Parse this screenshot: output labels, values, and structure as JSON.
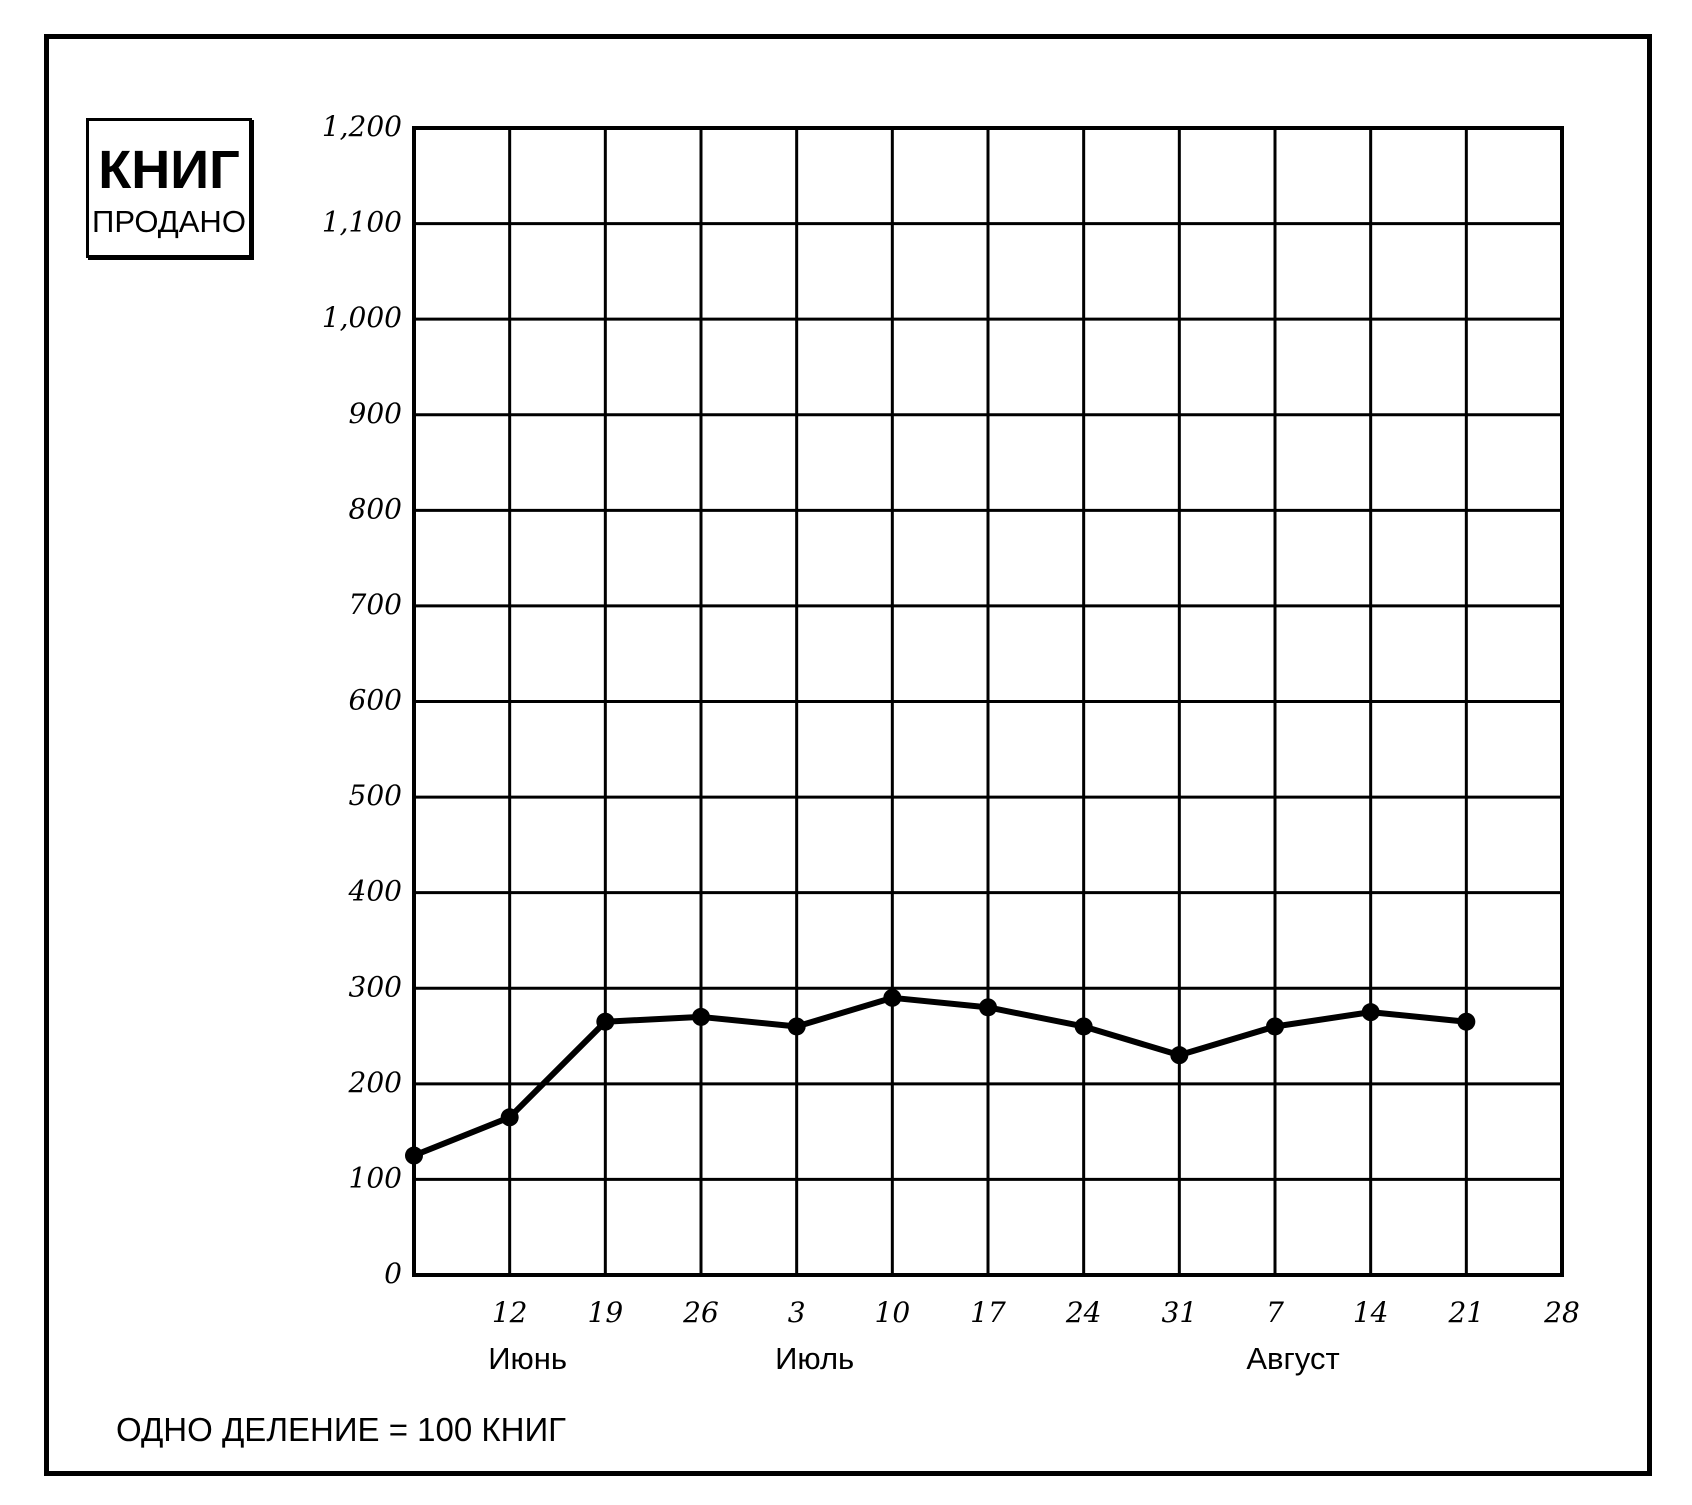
{
  "chart_data": {
    "type": "line",
    "ylabel": "КНИГ",
    "ylabel_sub": "ПРОДАНО",
    "note": "ОДНО ДЕЛЕНИЕ = 100 КНИГ",
    "ylim": [
      0,
      1200
    ],
    "y_ticks": [
      "0",
      "100",
      "200",
      "300",
      "400",
      "500",
      "600",
      "700",
      "800",
      "900",
      "1,000",
      "1,100",
      "1,200"
    ],
    "x_ticks": [
      "",
      "12",
      "19",
      "26",
      "3",
      "10",
      "17",
      "24",
      "31",
      "7",
      "14",
      "21",
      "28"
    ],
    "months": [
      {
        "label": "Июнь",
        "week_index": 1
      },
      {
        "label": "Июль",
        "week_index": 4
      },
      {
        "label": "Август",
        "week_index": 9
      }
    ],
    "values": [
      125,
      165,
      265,
      270,
      260,
      290,
      280,
      260,
      230,
      260,
      275,
      265
    ],
    "grid": true,
    "color": "#000000"
  }
}
